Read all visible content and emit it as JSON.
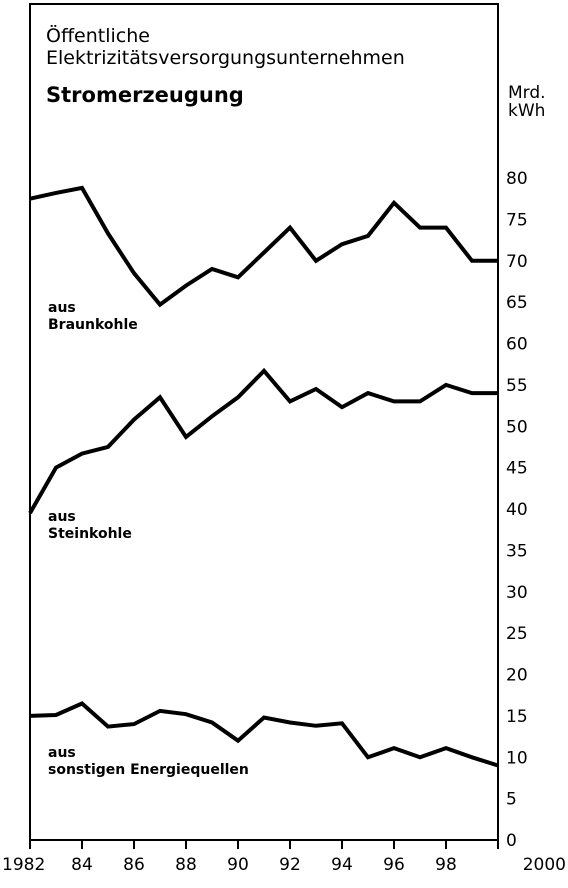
{
  "chart_data": {
    "type": "line",
    "title_line1": "Öffentliche",
    "title_line2": "Elektrizitätsversorgungsunternehmen",
    "subtitle": "Stromerzeugung",
    "unit_line1": "Mrd.",
    "unit_line2": "kWh",
    "x": [
      1982,
      1983,
      1984,
      1985,
      1986,
      1987,
      1988,
      1989,
      1990,
      1991,
      1992,
      1993,
      1994,
      1995,
      1996,
      1997,
      1998,
      1999,
      2000
    ],
    "x_tick_labels": [
      "1982",
      "84",
      "86",
      "88",
      "90",
      "92",
      "94",
      "96",
      "98",
      "2000"
    ],
    "x_tick_values": [
      1982,
      1984,
      1986,
      1988,
      1990,
      1992,
      1994,
      1996,
      1998,
      2000
    ],
    "y_tick_labels": [
      "0",
      "5",
      "10",
      "15",
      "20",
      "25",
      "30",
      "35",
      "40",
      "45",
      "50",
      "55",
      "60",
      "65",
      "70",
      "75",
      "80"
    ],
    "y_tick_values": [
      0,
      5,
      10,
      15,
      20,
      25,
      30,
      35,
      40,
      45,
      50,
      55,
      60,
      65,
      70,
      75,
      80
    ],
    "xlim": [
      1982,
      2000
    ],
    "ylim": [
      0,
      80
    ],
    "grid": false,
    "series": [
      {
        "label_line1": "aus",
        "label_line2": "Braunkohle",
        "values": [
          77.5,
          78.2,
          78.8,
          73.3,
          68.5,
          64.7,
          67.0,
          69.0,
          68.0,
          71.0,
          74.0,
          70.0,
          72.0,
          73.0,
          77.0,
          74.0,
          74.0,
          70.0,
          70.0
        ]
      },
      {
        "label_line1": "aus",
        "label_line2": "Steinkohle",
        "values": [
          39.5,
          45.0,
          46.7,
          47.5,
          50.8,
          53.5,
          48.7,
          51.2,
          53.5,
          56.7,
          53.0,
          54.5,
          52.3,
          54.0,
          53.0,
          53.0,
          55.0,
          54.0,
          54.0
        ]
      },
      {
        "label_line1": "aus",
        "label_line2": "sonstigen Energiequellen",
        "values": [
          15.0,
          15.1,
          16.5,
          13.7,
          14.0,
          15.6,
          15.2,
          14.2,
          12.0,
          14.8,
          14.2,
          13.8,
          14.1,
          10.0,
          11.1,
          10.0,
          11.1,
          10.0,
          9.0
        ]
      }
    ]
  }
}
